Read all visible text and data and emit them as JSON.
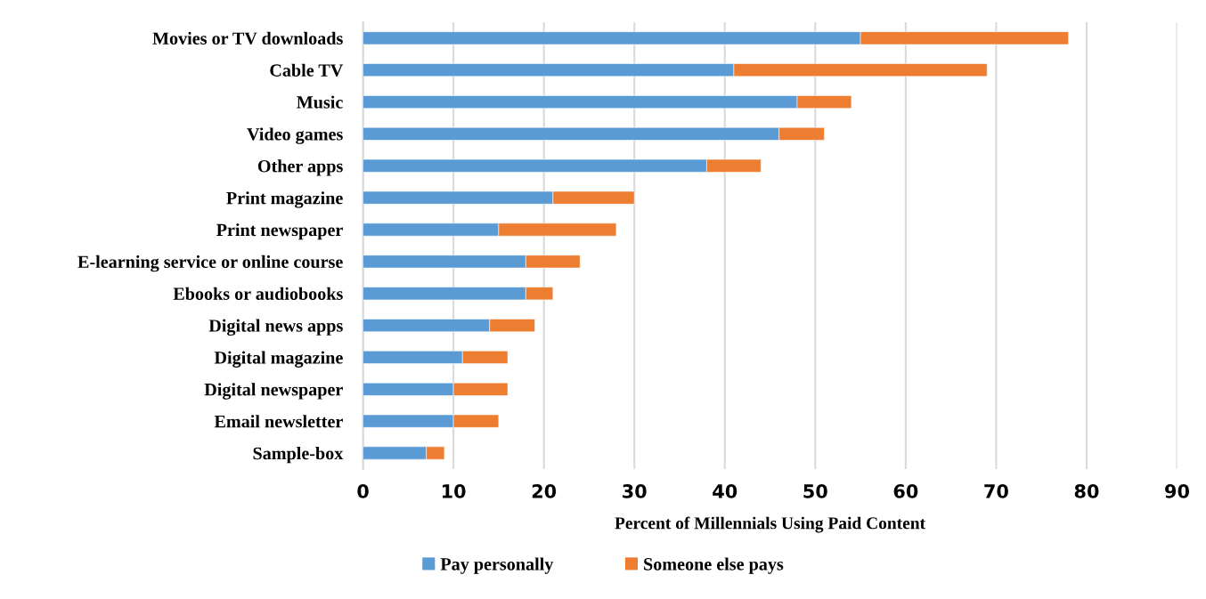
{
  "chart_data": {
    "type": "bar",
    "orientation": "horizontal",
    "stacked": true,
    "categories": [
      "Movies or TV downloads",
      "Cable TV",
      "Music",
      "Video games",
      "Other apps",
      "Print magazine",
      "Print newspaper",
      "E-learning service or online course",
      "Ebooks or audiobooks",
      "Digital news apps",
      "Digital magazine",
      "Digital newspaper",
      "Email newsletter",
      "Sample-box"
    ],
    "series": [
      {
        "name": "Pay personally",
        "color": "#5b9bd5",
        "values": [
          55,
          41,
          48,
          46,
          38,
          21,
          15,
          18,
          18,
          14,
          11,
          10,
          10,
          7
        ]
      },
      {
        "name": "Someone else pays",
        "color": "#ed7d31",
        "values": [
          23,
          28,
          6,
          5,
          6,
          9,
          13,
          6,
          3,
          5,
          5,
          6,
          5,
          2
        ]
      }
    ],
    "xlabel": "Percent of Millennials Using Paid Content",
    "xlim": [
      0,
      90
    ],
    "xticks": [
      0,
      10,
      20,
      30,
      40,
      50,
      60,
      70,
      80,
      90
    ],
    "grid": "x",
    "legend": "bottom"
  }
}
